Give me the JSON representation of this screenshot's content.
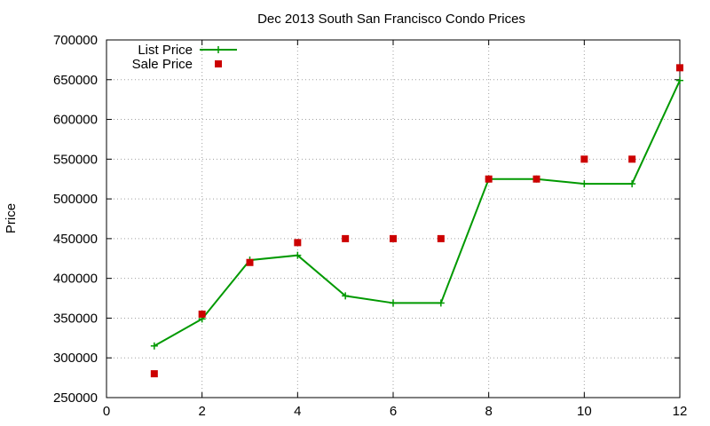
{
  "chart_data": {
    "type": "line",
    "title": "Dec 2013 South San Francisco Condo Prices",
    "xlabel": "",
    "ylabel": "Price",
    "xlim": [
      0,
      12
    ],
    "ylim": [
      250000,
      700000
    ],
    "x_ticks": [
      0,
      2,
      4,
      6,
      8,
      10,
      12
    ],
    "y_ticks": [
      250000,
      300000,
      350000,
      400000,
      450000,
      500000,
      550000,
      600000,
      650000,
      700000
    ],
    "grid": true,
    "legend_position": "top-left",
    "series": [
      {
        "name": "List Price",
        "style": "line+plus",
        "color": "#009900",
        "x": [
          1,
          2,
          3,
          4,
          5,
          6,
          7,
          8,
          9,
          10,
          11,
          12
        ],
        "values": [
          315000,
          349000,
          423000,
          429000,
          378000,
          369000,
          369000,
          525000,
          525000,
          519000,
          519000,
          649000
        ]
      },
      {
        "name": "Sale Price",
        "style": "square",
        "color": "#cc0000",
        "x": [
          1,
          2,
          3,
          4,
          5,
          6,
          7,
          8,
          9,
          10,
          11,
          12
        ],
        "values": [
          280000,
          355000,
          420000,
          445000,
          450000,
          450000,
          450000,
          525000,
          525000,
          550000,
          550000,
          665000
        ]
      }
    ]
  }
}
